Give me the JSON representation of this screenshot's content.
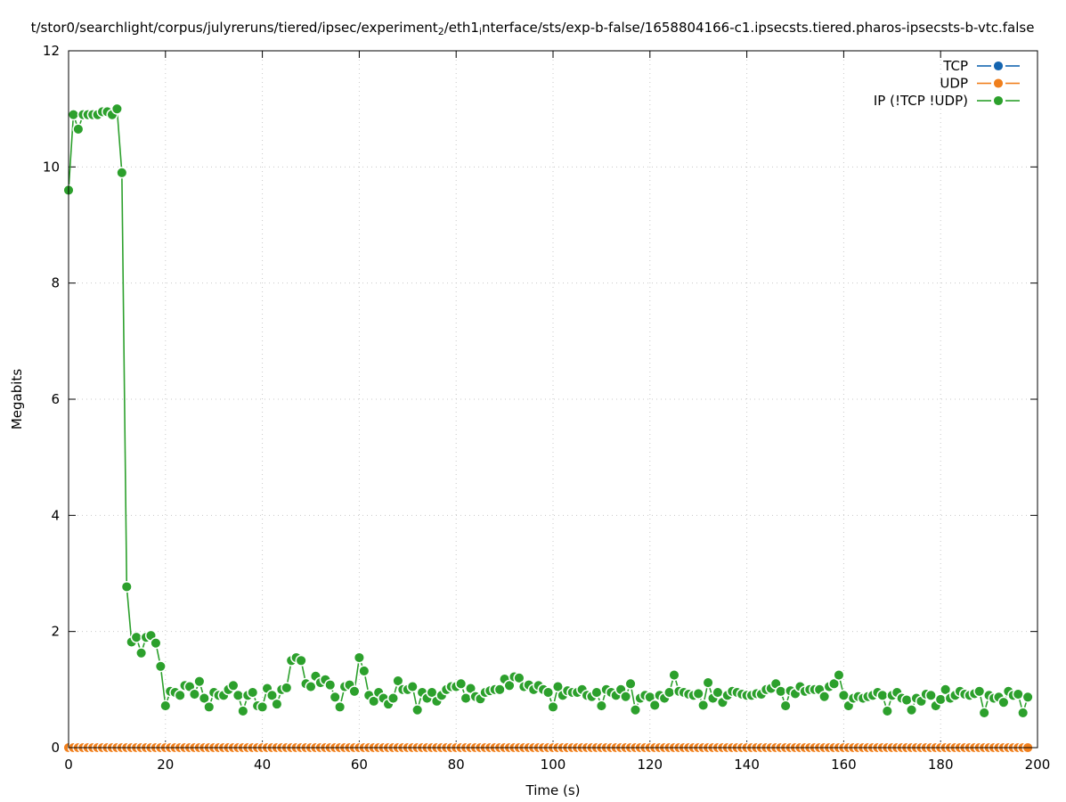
{
  "chart_data": {
    "type": "line",
    "title_parts": [
      "t/stor0/searchlight/corpus/julyreruns/tiered/ipsec/experiment",
      "2",
      "/eth1",
      "i",
      "nterface/sts/exp-b-false/1658804166-c1.ipsecsts.tiered.pharos-ipsecsts-b-vtc.false"
    ],
    "x_label": "Time (s)",
    "y_label": "Megabits",
    "xlim": [
      0,
      200
    ],
    "xticks": [
      0,
      20,
      40,
      60,
      80,
      100,
      120,
      140,
      160,
      180,
      200
    ],
    "ylim": [
      0,
      12
    ],
    "yticks": [
      0,
      2,
      4,
      6,
      8,
      10,
      12
    ],
    "grid": true,
    "legend": "top-right",
    "x": [
      0,
      1,
      2,
      3,
      4,
      5,
      6,
      7,
      8,
      9,
      10,
      11,
      12,
      13,
      14,
      15,
      16,
      17,
      18,
      19,
      20,
      21,
      22,
      23,
      24,
      25,
      26,
      27,
      28,
      29,
      30,
      31,
      32,
      33,
      34,
      35,
      36,
      37,
      38,
      39,
      40,
      41,
      42,
      43,
      44,
      45,
      46,
      47,
      48,
      49,
      50,
      51,
      52,
      53,
      54,
      55,
      56,
      57,
      58,
      59,
      60,
      61,
      62,
      63,
      64,
      65,
      66,
      67,
      68,
      69,
      70,
      71,
      72,
      73,
      74,
      75,
      76,
      77,
      78,
      79,
      80,
      81,
      82,
      83,
      84,
      85,
      86,
      87,
      88,
      89,
      90,
      91,
      92,
      93,
      94,
      95,
      96,
      97,
      98,
      99,
      100,
      101,
      102,
      103,
      104,
      105,
      106,
      107,
      108,
      109,
      110,
      111,
      112,
      113,
      114,
      115,
      116,
      117,
      118,
      119,
      120,
      121,
      122,
      123,
      124,
      125,
      126,
      127,
      128,
      129,
      130,
      131,
      132,
      133,
      134,
      135,
      136,
      137,
      138,
      139,
      140,
      141,
      142,
      143,
      144,
      145,
      146,
      147,
      148,
      149,
      150,
      151,
      152,
      153,
      154,
      155,
      156,
      157,
      158,
      159,
      160,
      161,
      162,
      163,
      164,
      165,
      166,
      167,
      168,
      169,
      170,
      171,
      172,
      173,
      174,
      175,
      176,
      177,
      178,
      179,
      180,
      181,
      182,
      183,
      184,
      185,
      186,
      187,
      188,
      189,
      190,
      191,
      192,
      193,
      194,
      195,
      196,
      197,
      198
    ],
    "series": [
      {
        "name": "TCP",
        "color": "#1565b0",
        "values": [
          0,
          0,
          0,
          0,
          0,
          0,
          0,
          0,
          0,
          0,
          0,
          0,
          0,
          0,
          0,
          0,
          0,
          0,
          0,
          0,
          0,
          0,
          0,
          0,
          0,
          0,
          0,
          0,
          0,
          0,
          0,
          0,
          0,
          0,
          0,
          0,
          0,
          0,
          0,
          0,
          0,
          0,
          0,
          0,
          0,
          0,
          0,
          0,
          0,
          0,
          0,
          0,
          0,
          0,
          0,
          0,
          0,
          0,
          0,
          0,
          0,
          0,
          0,
          0,
          0,
          0,
          0,
          0,
          0,
          0,
          0,
          0,
          0,
          0,
          0,
          0,
          0,
          0,
          0,
          0,
          0,
          0,
          0,
          0,
          0,
          0,
          0,
          0,
          0,
          0,
          0,
          0,
          0,
          0,
          0,
          0,
          0,
          0,
          0,
          0,
          0,
          0,
          0,
          0,
          0,
          0,
          0,
          0,
          0,
          0,
          0,
          0,
          0,
          0,
          0,
          0,
          0,
          0,
          0,
          0,
          0,
          0,
          0,
          0,
          0,
          0,
          0,
          0,
          0,
          0,
          0,
          0,
          0,
          0,
          0,
          0,
          0,
          0,
          0,
          0,
          0,
          0,
          0,
          0,
          0,
          0,
          0,
          0,
          0,
          0,
          0,
          0,
          0,
          0,
          0,
          0,
          0,
          0,
          0,
          0,
          0,
          0,
          0,
          0,
          0,
          0,
          0,
          0,
          0,
          0,
          0,
          0,
          0,
          0,
          0,
          0,
          0,
          0,
          0,
          0,
          0,
          0,
          0,
          0,
          0,
          0,
          0,
          0,
          0,
          0,
          0,
          0,
          0,
          0,
          0,
          0,
          0,
          0,
          0
        ]
      },
      {
        "name": "UDP",
        "color": "#f07f1c",
        "values": [
          0,
          0,
          0,
          0,
          0,
          0,
          0,
          0,
          0,
          0,
          0,
          0,
          0,
          0,
          0,
          0,
          0,
          0,
          0,
          0,
          0,
          0,
          0,
          0,
          0,
          0,
          0,
          0,
          0,
          0,
          0,
          0,
          0,
          0,
          0,
          0,
          0,
          0,
          0,
          0,
          0,
          0,
          0,
          0,
          0,
          0,
          0,
          0,
          0,
          0,
          0,
          0,
          0,
          0,
          0,
          0,
          0,
          0,
          0,
          0,
          0,
          0,
          0,
          0,
          0,
          0,
          0,
          0,
          0,
          0,
          0,
          0,
          0,
          0,
          0,
          0,
          0,
          0,
          0,
          0,
          0,
          0,
          0,
          0,
          0,
          0,
          0,
          0,
          0,
          0,
          0,
          0,
          0,
          0,
          0,
          0,
          0,
          0,
          0,
          0,
          0,
          0,
          0,
          0,
          0,
          0,
          0,
          0,
          0,
          0,
          0,
          0,
          0,
          0,
          0,
          0,
          0,
          0,
          0,
          0,
          0,
          0,
          0,
          0,
          0,
          0,
          0,
          0,
          0,
          0,
          0,
          0,
          0,
          0,
          0,
          0,
          0,
          0,
          0,
          0,
          0,
          0,
          0,
          0,
          0,
          0,
          0,
          0,
          0,
          0,
          0,
          0,
          0,
          0,
          0,
          0,
          0,
          0,
          0,
          0,
          0,
          0,
          0,
          0,
          0,
          0,
          0,
          0,
          0,
          0,
          0,
          0,
          0,
          0,
          0,
          0,
          0,
          0,
          0,
          0,
          0,
          0,
          0,
          0,
          0,
          0,
          0,
          0,
          0,
          0,
          0,
          0,
          0,
          0,
          0,
          0,
          0,
          0,
          0
        ]
      },
      {
        "name": "IP (!TCP  !UDP)",
        "color": "#2ca02c",
        "values": [
          9.6,
          10.9,
          10.65,
          10.9,
          10.9,
          10.9,
          10.9,
          10.95,
          10.95,
          10.9,
          11.0,
          9.9,
          2.77,
          1.82,
          1.9,
          1.63,
          1.9,
          1.93,
          1.8,
          1.4,
          0.72,
          0.97,
          0.95,
          0.9,
          1.07,
          1.05,
          0.92,
          1.14,
          0.85,
          0.7,
          0.95,
          0.9,
          0.9,
          1.0,
          1.07,
          0.9,
          0.63,
          0.9,
          0.95,
          0.72,
          0.7,
          1.02,
          0.9,
          0.75,
          1.0,
          1.03,
          1.5,
          1.55,
          1.5,
          1.1,
          1.05,
          1.23,
          1.12,
          1.17,
          1.08,
          0.87,
          0.7,
          1.05,
          1.08,
          0.97,
          1.55,
          1.32,
          0.9,
          0.8,
          0.95,
          0.85,
          0.75,
          0.85,
          1.15,
          1.0,
          1.0,
          1.05,
          0.65,
          0.95,
          0.85,
          0.95,
          0.8,
          0.9,
          1.0,
          1.05,
          1.05,
          1.1,
          0.85,
          1.02,
          0.88,
          0.84,
          0.95,
          0.98,
          1.0,
          1.0,
          1.18,
          1.07,
          1.22,
          1.2,
          1.05,
          1.08,
          1.0,
          1.07,
          1.0,
          0.95,
          0.7,
          1.05,
          0.9,
          0.98,
          0.95,
          0.95,
          1.0,
          0.9,
          0.88,
          0.95,
          0.72,
          1.0,
          0.95,
          0.9,
          1.0,
          0.88,
          1.1,
          0.65,
          0.85,
          0.9,
          0.87,
          0.73,
          0.9,
          0.85,
          0.95,
          1.25,
          0.97,
          0.95,
          0.92,
          0.9,
          0.93,
          0.73,
          1.12,
          0.85,
          0.95,
          0.78,
          0.9,
          0.97,
          0.95,
          0.92,
          0.9,
          0.9,
          0.93,
          0.92,
          1.0,
          1.02,
          1.1,
          0.97,
          0.72,
          0.98,
          0.93,
          1.05,
          0.97,
          1.0,
          1.0,
          1.0,
          0.88,
          1.05,
          1.1,
          1.25,
          0.9,
          0.72,
          0.85,
          0.88,
          0.85,
          0.88,
          0.9,
          0.95,
          0.9,
          0.63,
          0.9,
          0.95,
          0.85,
          0.82,
          0.65,
          0.85,
          0.8,
          0.92,
          0.9,
          0.72,
          0.83,
          1.0,
          0.85,
          0.9,
          0.97,
          0.92,
          0.9,
          0.93,
          0.97,
          0.6,
          0.9,
          0.85,
          0.87,
          0.78,
          0.97,
          0.9,
          0.92,
          0.6,
          0.87
        ]
      }
    ]
  }
}
